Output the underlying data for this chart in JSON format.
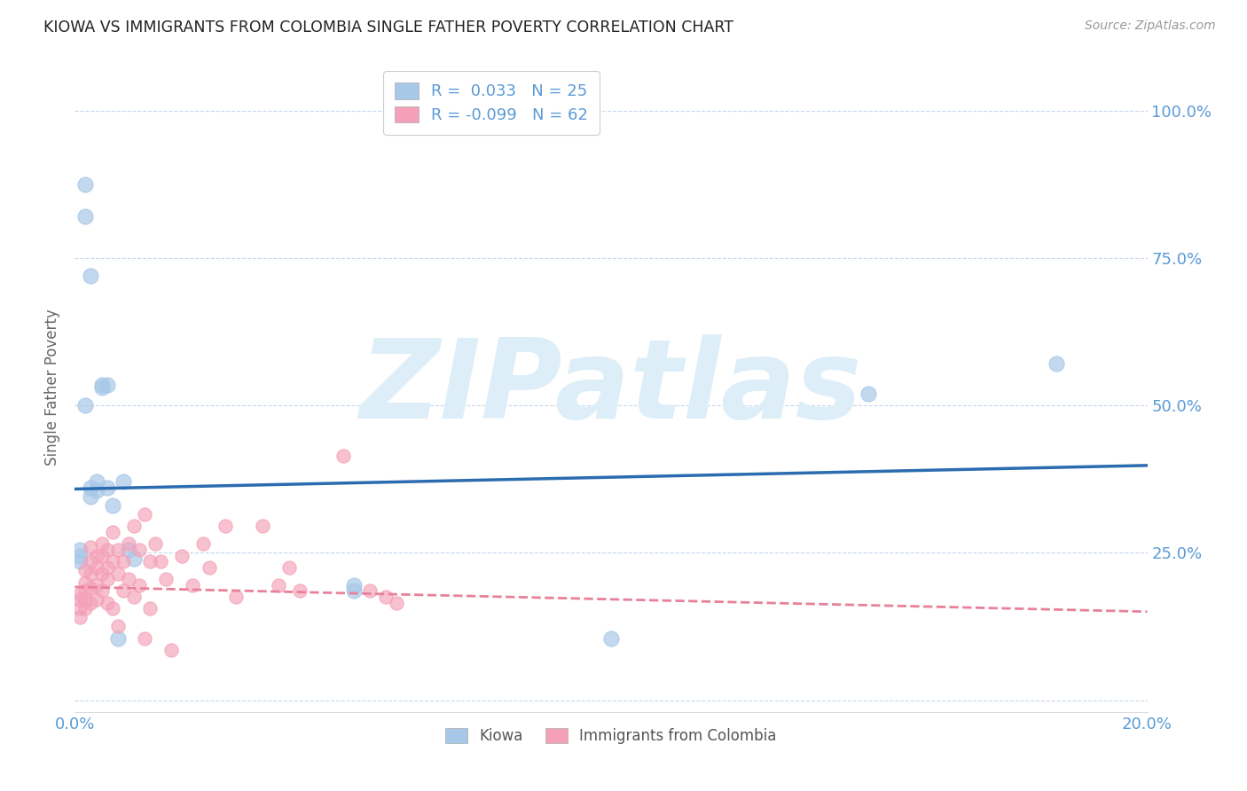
{
  "title": "KIOWA VS IMMIGRANTS FROM COLOMBIA SINGLE FATHER POVERTY CORRELATION CHART",
  "source": "Source: ZipAtlas.com",
  "ylabel": "Single Father Poverty",
  "xlim": [
    0.0,
    0.2
  ],
  "ylim": [
    -0.02,
    1.08
  ],
  "yticks": [
    0.0,
    0.25,
    0.5,
    0.75,
    1.0
  ],
  "ytick_labels": [
    "",
    "25.0%",
    "50.0%",
    "75.0%",
    "100.0%"
  ],
  "xticks": [
    0.0,
    0.05,
    0.1,
    0.15,
    0.2
  ],
  "xtick_labels": [
    "0.0%",
    "",
    "",
    "",
    "20.0%"
  ],
  "kiowa_R": 0.033,
  "kiowa_N": 25,
  "colombia_R": -0.099,
  "colombia_N": 62,
  "kiowa_color": "#a8c8e8",
  "colombia_color": "#f4a0b8",
  "kiowa_line_color": "#2b6cb0",
  "colombia_line_color": "#e8809a",
  "background_color": "#ffffff",
  "watermark_text": "ZIPatlas",
  "watermark_color": "#ddeef8",
  "kiowa_x": [
    0.001,
    0.001,
    0.001,
    0.002,
    0.002,
    0.003,
    0.003,
    0.004,
    0.004,
    0.005,
    0.005,
    0.006,
    0.006,
    0.007,
    0.008,
    0.009,
    0.01,
    0.011,
    0.002,
    0.003,
    0.052,
    0.052,
    0.1,
    0.148,
    0.183
  ],
  "kiowa_y": [
    0.255,
    0.245,
    0.235,
    0.875,
    0.82,
    0.72,
    0.36,
    0.37,
    0.355,
    0.53,
    0.535,
    0.535,
    0.36,
    0.33,
    0.105,
    0.37,
    0.255,
    0.24,
    0.5,
    0.345,
    0.185,
    0.195,
    0.105,
    0.52,
    0.57
  ],
  "colombia_x": [
    0.001,
    0.001,
    0.001,
    0.001,
    0.002,
    0.002,
    0.002,
    0.002,
    0.002,
    0.003,
    0.003,
    0.003,
    0.003,
    0.003,
    0.004,
    0.004,
    0.004,
    0.004,
    0.005,
    0.005,
    0.005,
    0.005,
    0.006,
    0.006,
    0.006,
    0.006,
    0.007,
    0.007,
    0.007,
    0.008,
    0.008,
    0.008,
    0.009,
    0.009,
    0.01,
    0.01,
    0.011,
    0.011,
    0.012,
    0.012,
    0.013,
    0.013,
    0.014,
    0.014,
    0.015,
    0.016,
    0.017,
    0.018,
    0.02,
    0.022,
    0.024,
    0.025,
    0.028,
    0.03,
    0.035,
    0.038,
    0.04,
    0.042,
    0.05,
    0.055,
    0.058,
    0.06
  ],
  "colombia_y": [
    0.18,
    0.17,
    0.155,
    0.14,
    0.22,
    0.2,
    0.185,
    0.17,
    0.155,
    0.26,
    0.235,
    0.215,
    0.19,
    0.165,
    0.245,
    0.225,
    0.195,
    0.17,
    0.265,
    0.245,
    0.215,
    0.185,
    0.255,
    0.225,
    0.205,
    0.165,
    0.285,
    0.235,
    0.155,
    0.255,
    0.215,
    0.125,
    0.235,
    0.185,
    0.265,
    0.205,
    0.295,
    0.175,
    0.255,
    0.195,
    0.315,
    0.105,
    0.235,
    0.155,
    0.265,
    0.235,
    0.205,
    0.085,
    0.245,
    0.195,
    0.265,
    0.225,
    0.295,
    0.175,
    0.295,
    0.195,
    0.225,
    0.185,
    0.415,
    0.185,
    0.175,
    0.165
  ],
  "kiowa_trend_x": [
    0.0,
    0.2
  ],
  "kiowa_trend_y": [
    0.358,
    0.398
  ],
  "colombia_trend_x": [
    0.0,
    0.2
  ],
  "colombia_trend_y": [
    0.192,
    0.15
  ]
}
